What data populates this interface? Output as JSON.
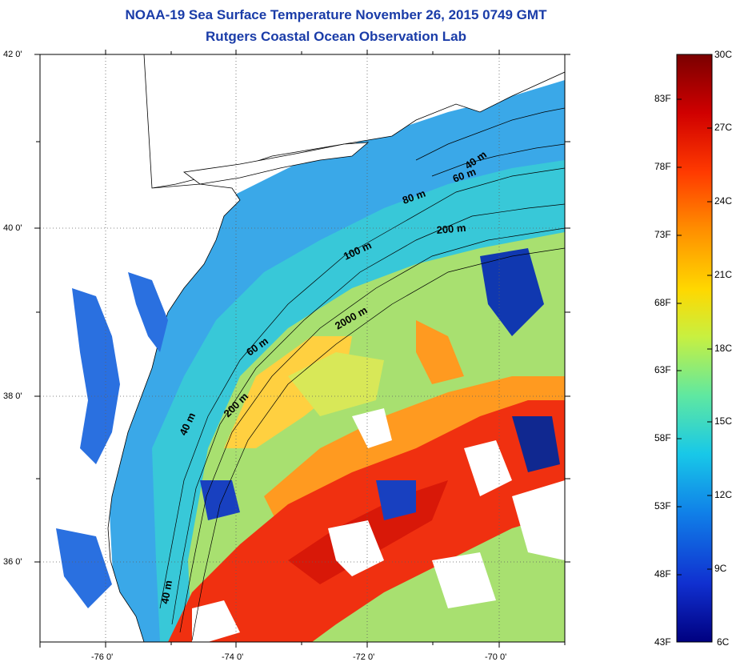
{
  "title_line1": "NOAA-19 Sea Surface Temperature November 26, 2015 0749 GMT",
  "title_line2": "Rutgers Coastal Ocean Observation Lab",
  "lat_labels": [
    "42 0'",
    "40 0'",
    "38 0'",
    "36 0'"
  ],
  "lon_labels": [
    "-76 0'",
    "-74 0'",
    "-72 0'",
    "-70 0'"
  ],
  "isobath_labels": [
    "40 m",
    "60 m",
    "80 m",
    "200 m",
    "100 m",
    "2000 m",
    "60 m",
    "200 m",
    "40 m",
    "40 m"
  ],
  "colorbar": {
    "fahrenheit": [
      "83F",
      "78F",
      "73F",
      "68F",
      "63F",
      "58F",
      "53F",
      "48F",
      "43F"
    ],
    "celsius": [
      "30C",
      "27C",
      "24C",
      "21C",
      "18C",
      "15C",
      "12C",
      "9C",
      "6C"
    ],
    "colors": [
      "#7a0000",
      "#d00000",
      "#ff3a00",
      "#ff9000",
      "#ffd800",
      "#c8f040",
      "#60e8a0",
      "#18c8e8",
      "#1080e8",
      "#1030d0",
      "#000080"
    ]
  },
  "colors": {
    "title": "#1a3ca8",
    "land": "#ffffff",
    "coast": "#000000"
  }
}
